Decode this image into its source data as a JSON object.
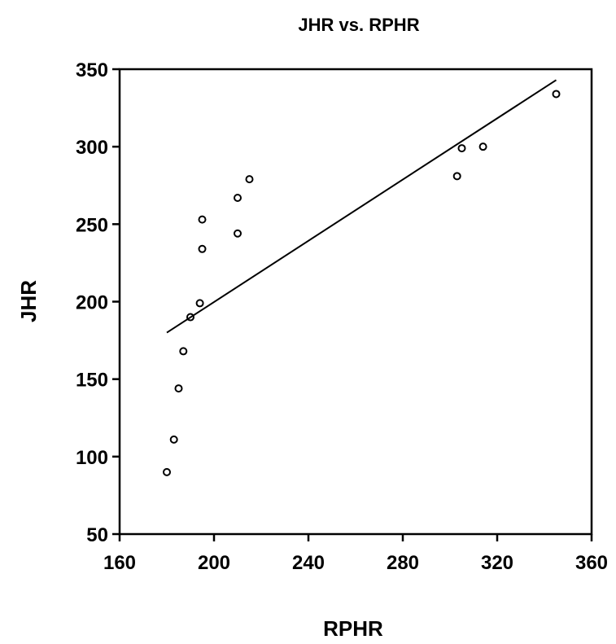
{
  "chart_data": {
    "type": "scatter",
    "title": "JHR vs. RPHR",
    "xlabel": "RPHR",
    "ylabel": "JHR",
    "xlim": [
      160,
      360
    ],
    "ylim": [
      50,
      350
    ],
    "xticks": [
      "160",
      "200",
      "240",
      "280",
      "320",
      "360"
    ],
    "yticks": [
      "50",
      "100",
      "150",
      "200",
      "250",
      "300",
      "350"
    ],
    "grid": false,
    "legend": "none",
    "points": [
      {
        "x": 180,
        "y": 90
      },
      {
        "x": 183,
        "y": 111
      },
      {
        "x": 185,
        "y": 144
      },
      {
        "x": 187,
        "y": 168
      },
      {
        "x": 190,
        "y": 190
      },
      {
        "x": 194,
        "y": 199
      },
      {
        "x": 195,
        "y": 234
      },
      {
        "x": 195,
        "y": 253
      },
      {
        "x": 210,
        "y": 244
      },
      {
        "x": 210,
        "y": 267
      },
      {
        "x": 215,
        "y": 279
      },
      {
        "x": 303,
        "y": 281
      },
      {
        "x": 305,
        "y": 299
      },
      {
        "x": 314,
        "y": 300
      },
      {
        "x": 345,
        "y": 334
      }
    ],
    "fit_line": {
      "x": [
        180,
        345
      ],
      "y": [
        180,
        343
      ]
    },
    "colors": {
      "marker": "#000000",
      "line": "#000000",
      "axes": "#000000",
      "background": "#ffffff"
    }
  }
}
